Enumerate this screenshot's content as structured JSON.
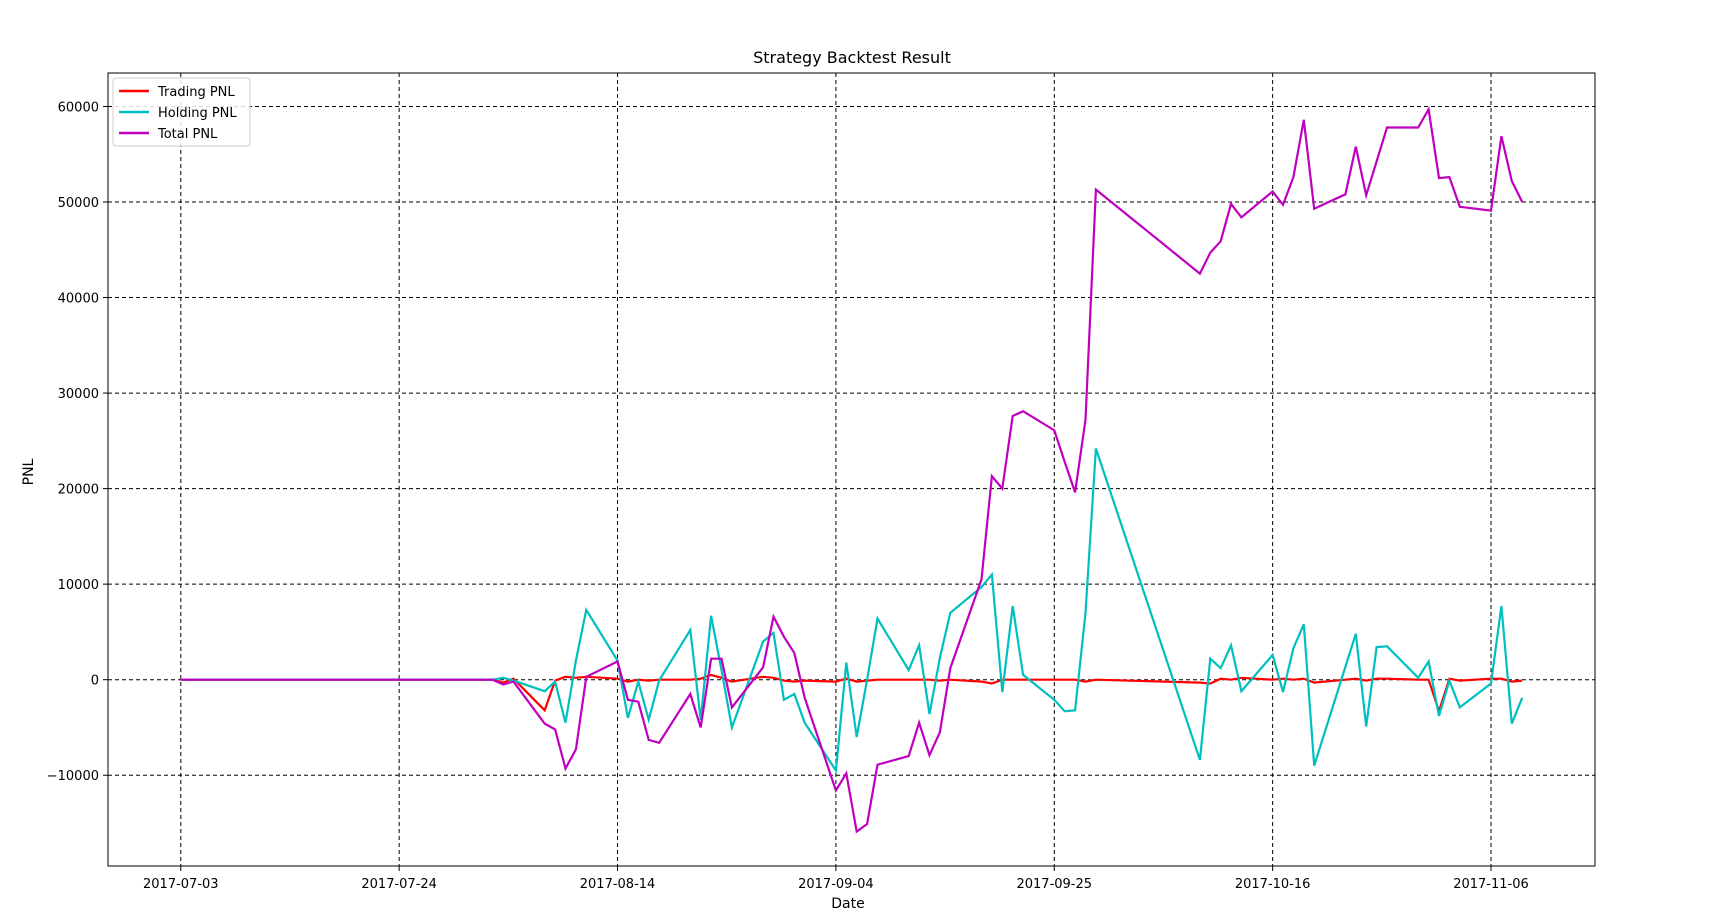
{
  "chart_data": {
    "type": "line",
    "title": "Strategy Backtest Result",
    "xlabel": "Date",
    "ylabel": "PNL",
    "x_range": [
      "2017-06-26",
      "2017-11-16"
    ],
    "ylim": [
      -19500,
      63500
    ],
    "x_ticks": [
      "2017-07-03",
      "2017-07-24",
      "2017-08-14",
      "2017-09-04",
      "2017-09-25",
      "2017-10-16",
      "2017-11-06"
    ],
    "y_ticks": [
      -10000,
      0,
      10000,
      20000,
      30000,
      40000,
      50000,
      60000
    ],
    "y_tick_labels": [
      "−10000",
      "0",
      "10000",
      "20000",
      "30000",
      "40000",
      "50000",
      "60000"
    ],
    "grid": true,
    "legend_position": "top-left",
    "series": [
      {
        "name": "Trading PNL",
        "color": "#ff0000",
        "points": [
          [
            "2017-07-03",
            0
          ],
          [
            "2017-08-02",
            0
          ],
          [
            "2017-08-03",
            -300
          ],
          [
            "2017-08-04",
            100
          ],
          [
            "2017-08-07",
            -3200
          ],
          [
            "2017-08-08",
            -100
          ],
          [
            "2017-08-09",
            300
          ],
          [
            "2017-08-10",
            200
          ],
          [
            "2017-08-11",
            300
          ],
          [
            "2017-08-14",
            100
          ],
          [
            "2017-08-15",
            -200
          ],
          [
            "2017-08-16",
            0
          ],
          [
            "2017-08-17",
            -100
          ],
          [
            "2017-08-18",
            0
          ],
          [
            "2017-08-21",
            0
          ],
          [
            "2017-08-22",
            100
          ],
          [
            "2017-08-23",
            500
          ],
          [
            "2017-08-24",
            200
          ],
          [
            "2017-08-25",
            -200
          ],
          [
            "2017-08-28",
            300
          ],
          [
            "2017-08-29",
            200
          ],
          [
            "2017-08-30",
            -100
          ],
          [
            "2017-08-31",
            -200
          ],
          [
            "2017-09-01",
            -100
          ],
          [
            "2017-09-04",
            -200
          ],
          [
            "2017-09-05",
            100
          ],
          [
            "2017-09-06",
            -200
          ],
          [
            "2017-09-07",
            -100
          ],
          [
            "2017-09-08",
            0
          ],
          [
            "2017-09-11",
            0
          ],
          [
            "2017-09-12",
            0
          ],
          [
            "2017-09-13",
            0
          ],
          [
            "2017-09-14",
            -100
          ],
          [
            "2017-09-15",
            0
          ],
          [
            "2017-09-18",
            -200
          ],
          [
            "2017-09-19",
            -400
          ],
          [
            "2017-09-20",
            0
          ],
          [
            "2017-09-21",
            0
          ],
          [
            "2017-09-22",
            0
          ],
          [
            "2017-09-25",
            0
          ],
          [
            "2017-09-26",
            0
          ],
          [
            "2017-09-27",
            0
          ],
          [
            "2017-09-28",
            -200
          ],
          [
            "2017-09-29",
            0
          ],
          [
            "2017-10-09",
            -300
          ],
          [
            "2017-10-10",
            -400
          ],
          [
            "2017-10-11",
            100
          ],
          [
            "2017-10-12",
            0
          ],
          [
            "2017-10-13",
            200
          ],
          [
            "2017-10-16",
            0
          ],
          [
            "2017-10-17",
            100
          ],
          [
            "2017-10-18",
            0
          ],
          [
            "2017-10-19",
            100
          ],
          [
            "2017-10-20",
            -300
          ],
          [
            "2017-10-23",
            0
          ],
          [
            "2017-10-24",
            100
          ],
          [
            "2017-10-25",
            -100
          ],
          [
            "2017-10-26",
            100
          ],
          [
            "2017-10-27",
            100
          ],
          [
            "2017-10-30",
            0
          ],
          [
            "2017-10-31",
            0
          ],
          [
            "2017-11-01",
            -3300
          ],
          [
            "2017-11-02",
            100
          ],
          [
            "2017-11-03",
            -100
          ],
          [
            "2017-11-06",
            100
          ],
          [
            "2017-11-07",
            100
          ],
          [
            "2017-11-08",
            -200
          ],
          [
            "2017-11-09",
            -100
          ]
        ]
      },
      {
        "name": "Holding PNL",
        "color": "#00bfbf",
        "points": [
          [
            "2017-07-03",
            0
          ],
          [
            "2017-08-01",
            0
          ],
          [
            "2017-08-02",
            0
          ],
          [
            "2017-08-03",
            200
          ],
          [
            "2017-08-04",
            -100
          ],
          [
            "2017-08-07",
            -1200
          ],
          [
            "2017-08-08",
            -200
          ],
          [
            "2017-08-09",
            -4500
          ],
          [
            "2017-08-10",
            2000
          ],
          [
            "2017-08-11",
            7300
          ],
          [
            "2017-08-14",
            2000
          ],
          [
            "2017-08-15",
            -4000
          ],
          [
            "2017-08-16",
            -200
          ],
          [
            "2017-08-17",
            -4200
          ],
          [
            "2017-08-18",
            -100
          ],
          [
            "2017-08-21",
            5200
          ],
          [
            "2017-08-22",
            -4200
          ],
          [
            "2017-08-23",
            6700
          ],
          [
            "2017-08-24",
            1000
          ],
          [
            "2017-08-25",
            -5000
          ],
          [
            "2017-08-28",
            4000
          ],
          [
            "2017-08-29",
            4900
          ],
          [
            "2017-08-30",
            -2100
          ],
          [
            "2017-08-31",
            -1500
          ],
          [
            "2017-09-01",
            -4500
          ],
          [
            "2017-09-04",
            -9500
          ],
          [
            "2017-09-05",
            1800
          ],
          [
            "2017-09-06",
            -6000
          ],
          [
            "2017-09-07",
            0
          ],
          [
            "2017-09-08",
            6400
          ],
          [
            "2017-09-11",
            1000
          ],
          [
            "2017-09-12",
            3600
          ],
          [
            "2017-09-13",
            -3600
          ],
          [
            "2017-09-14",
            2300
          ],
          [
            "2017-09-15",
            7000
          ],
          [
            "2017-09-18",
            9700
          ],
          [
            "2017-09-19",
            11000
          ],
          [
            "2017-09-20",
            -1300
          ],
          [
            "2017-09-21",
            7700
          ],
          [
            "2017-09-22",
            500
          ],
          [
            "2017-09-25",
            -2100
          ],
          [
            "2017-09-26",
            -3300
          ],
          [
            "2017-09-27",
            -3200
          ],
          [
            "2017-09-28",
            7000
          ],
          [
            "2017-09-29",
            24200
          ],
          [
            "2017-10-09",
            -8400
          ],
          [
            "2017-10-10",
            2200
          ],
          [
            "2017-10-11",
            1200
          ],
          [
            "2017-10-12",
            3600
          ],
          [
            "2017-10-13",
            -1200
          ],
          [
            "2017-10-16",
            2600
          ],
          [
            "2017-10-17",
            -1300
          ],
          [
            "2017-10-18",
            3300
          ],
          [
            "2017-10-19",
            5800
          ],
          [
            "2017-10-20",
            -9000
          ],
          [
            "2017-10-24",
            4800
          ],
          [
            "2017-10-25",
            -4900
          ],
          [
            "2017-10-26",
            3400
          ],
          [
            "2017-10-27",
            3500
          ],
          [
            "2017-10-30",
            200
          ],
          [
            "2017-10-31",
            1900
          ],
          [
            "2017-11-01",
            -3800
          ],
          [
            "2017-11-02",
            -100
          ],
          [
            "2017-11-03",
            -2900
          ],
          [
            "2017-11-06",
            -400
          ],
          [
            "2017-11-07",
            7700
          ],
          [
            "2017-11-08",
            -4600
          ],
          [
            "2017-11-09",
            -1900
          ]
        ]
      },
      {
        "name": "Total PNL",
        "color": "#bf00bf",
        "points": [
          [
            "2017-07-03",
            0
          ],
          [
            "2017-08-01",
            0
          ],
          [
            "2017-08-02",
            0
          ],
          [
            "2017-08-03",
            -500
          ],
          [
            "2017-08-04",
            -200
          ],
          [
            "2017-08-07",
            -4600
          ],
          [
            "2017-08-08",
            -5200
          ],
          [
            "2017-08-09",
            -9300
          ],
          [
            "2017-08-10",
            -7300
          ],
          [
            "2017-08-11",
            300
          ],
          [
            "2017-08-14",
            1900
          ],
          [
            "2017-08-15",
            -2100
          ],
          [
            "2017-08-16",
            -2300
          ],
          [
            "2017-08-17",
            -6300
          ],
          [
            "2017-08-18",
            -6600
          ],
          [
            "2017-08-21",
            -1500
          ],
          [
            "2017-08-22",
            -5000
          ],
          [
            "2017-08-23",
            2200
          ],
          [
            "2017-08-24",
            2200
          ],
          [
            "2017-08-25",
            -2900
          ],
          [
            "2017-08-28",
            1300
          ],
          [
            "2017-08-29",
            6600
          ],
          [
            "2017-08-30",
            4500
          ],
          [
            "2017-08-31",
            2800
          ],
          [
            "2017-09-01",
            -1900
          ],
          [
            "2017-09-04",
            -11600
          ],
          [
            "2017-09-05",
            -9800
          ],
          [
            "2017-09-06",
            -15900
          ],
          [
            "2017-09-07",
            -15100
          ],
          [
            "2017-09-08",
            -8900
          ],
          [
            "2017-09-11",
            -8000
          ],
          [
            "2017-09-12",
            -4500
          ],
          [
            "2017-09-13",
            -7900
          ],
          [
            "2017-09-14",
            -5500
          ],
          [
            "2017-09-15",
            1200
          ],
          [
            "2017-09-18",
            10500
          ],
          [
            "2017-09-19",
            21300
          ],
          [
            "2017-09-20",
            20000
          ],
          [
            "2017-09-21",
            27600
          ],
          [
            "2017-09-22",
            28100
          ],
          [
            "2017-09-25",
            26100
          ],
          [
            "2017-09-26",
            22800
          ],
          [
            "2017-09-27",
            19600
          ],
          [
            "2017-09-28",
            27200
          ],
          [
            "2017-09-29",
            51300
          ],
          [
            "2017-10-09",
            42500
          ],
          [
            "2017-10-10",
            44700
          ],
          [
            "2017-10-11",
            45900
          ],
          [
            "2017-10-12",
            49800
          ],
          [
            "2017-10-13",
            48400
          ],
          [
            "2017-10-16",
            51100
          ],
          [
            "2017-10-17",
            49700
          ],
          [
            "2017-10-18",
            52600
          ],
          [
            "2017-10-19",
            58600
          ],
          [
            "2017-10-20",
            49300
          ],
          [
            "2017-10-23",
            50800
          ],
          [
            "2017-10-24",
            55800
          ],
          [
            "2017-10-25",
            50700
          ],
          [
            "2017-10-27",
            57800
          ],
          [
            "2017-10-30",
            57800
          ],
          [
            "2017-10-31",
            59700
          ],
          [
            "2017-11-01",
            52500
          ],
          [
            "2017-11-02",
            52600
          ],
          [
            "2017-11-03",
            49500
          ],
          [
            "2017-11-06",
            49100
          ],
          [
            "2017-11-07",
            56900
          ],
          [
            "2017-11-08",
            52200
          ],
          [
            "2017-11-09",
            50000
          ]
        ]
      }
    ]
  }
}
